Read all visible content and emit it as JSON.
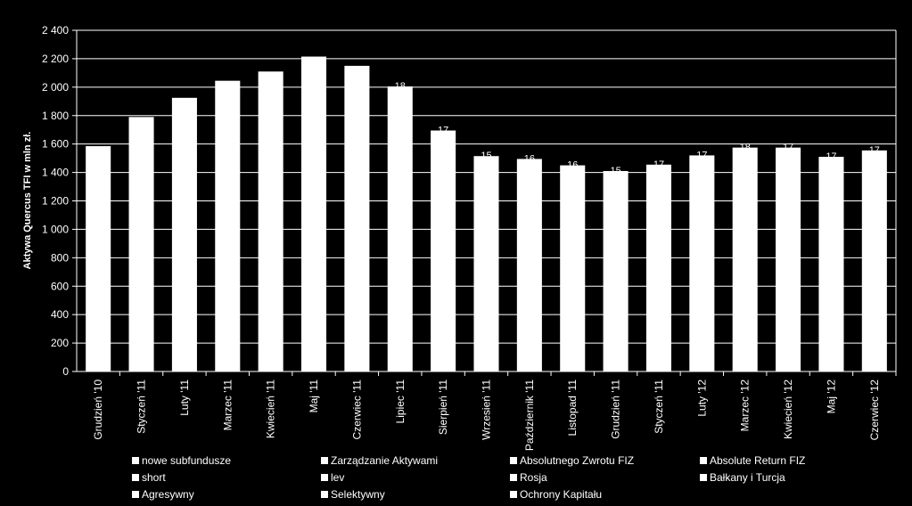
{
  "chart_data": {
    "type": "bar",
    "title": "",
    "xlabel": "",
    "ylabel": "Aktywa Quercus TFI w mln zł.",
    "ylim": [
      0,
      2400
    ],
    "ytick_step": 200,
    "ytick_labels": [
      "0",
      "200",
      "400",
      "600",
      "800",
      "1 000",
      "1 200",
      "1 400",
      "1 600",
      "1 800",
      "2 000",
      "2 200",
      "2 400"
    ],
    "grid": true,
    "legend_position": "bottom",
    "categories": [
      "Grudzień '10",
      "Styczeń '11",
      "Luty '11",
      "Marzec '11",
      "Kwiecień '11",
      "Maj '11",
      "Czerwiec '11",
      "Lipiec '11",
      "Sierpień '11",
      "Wrzesień '11",
      "Październik '11",
      "Listopad '11",
      "Grudzień '11",
      "Styczeń '11",
      "Luty '12",
      "Marzec '12",
      "Kwiecień '12",
      "Maj '12",
      "Czerwiec '12"
    ],
    "values": [
      1585,
      1790,
      1925,
      2045,
      2110,
      2215,
      2150,
      2005,
      1695,
      1515,
      1495,
      1450,
      1410,
      1455,
      1520,
      1575,
      1575,
      1510,
      1555
    ],
    "data_labels": [
      "",
      "",
      "",
      "",
      "",
      "",
      "",
      "18",
      "17",
      "15",
      "16",
      "16",
      "15",
      "17",
      "17",
      "18",
      "17",
      "17",
      "17"
    ],
    "legend": [
      "nowe subfundusze",
      "Zarządzanie Aktywami",
      "Absolutnego Zwrotu FIZ",
      "Absolute Return FIZ",
      "short",
      "lev",
      "Rosja",
      "Bałkany i Turcja",
      "Agresywny",
      "Selektywny",
      "Ochrony Kapitału"
    ],
    "colors": {
      "background": "#000000",
      "bar": "#ffffff",
      "axis": "#ffffff",
      "grid": "#ffffff",
      "text": "#ffffff"
    }
  }
}
